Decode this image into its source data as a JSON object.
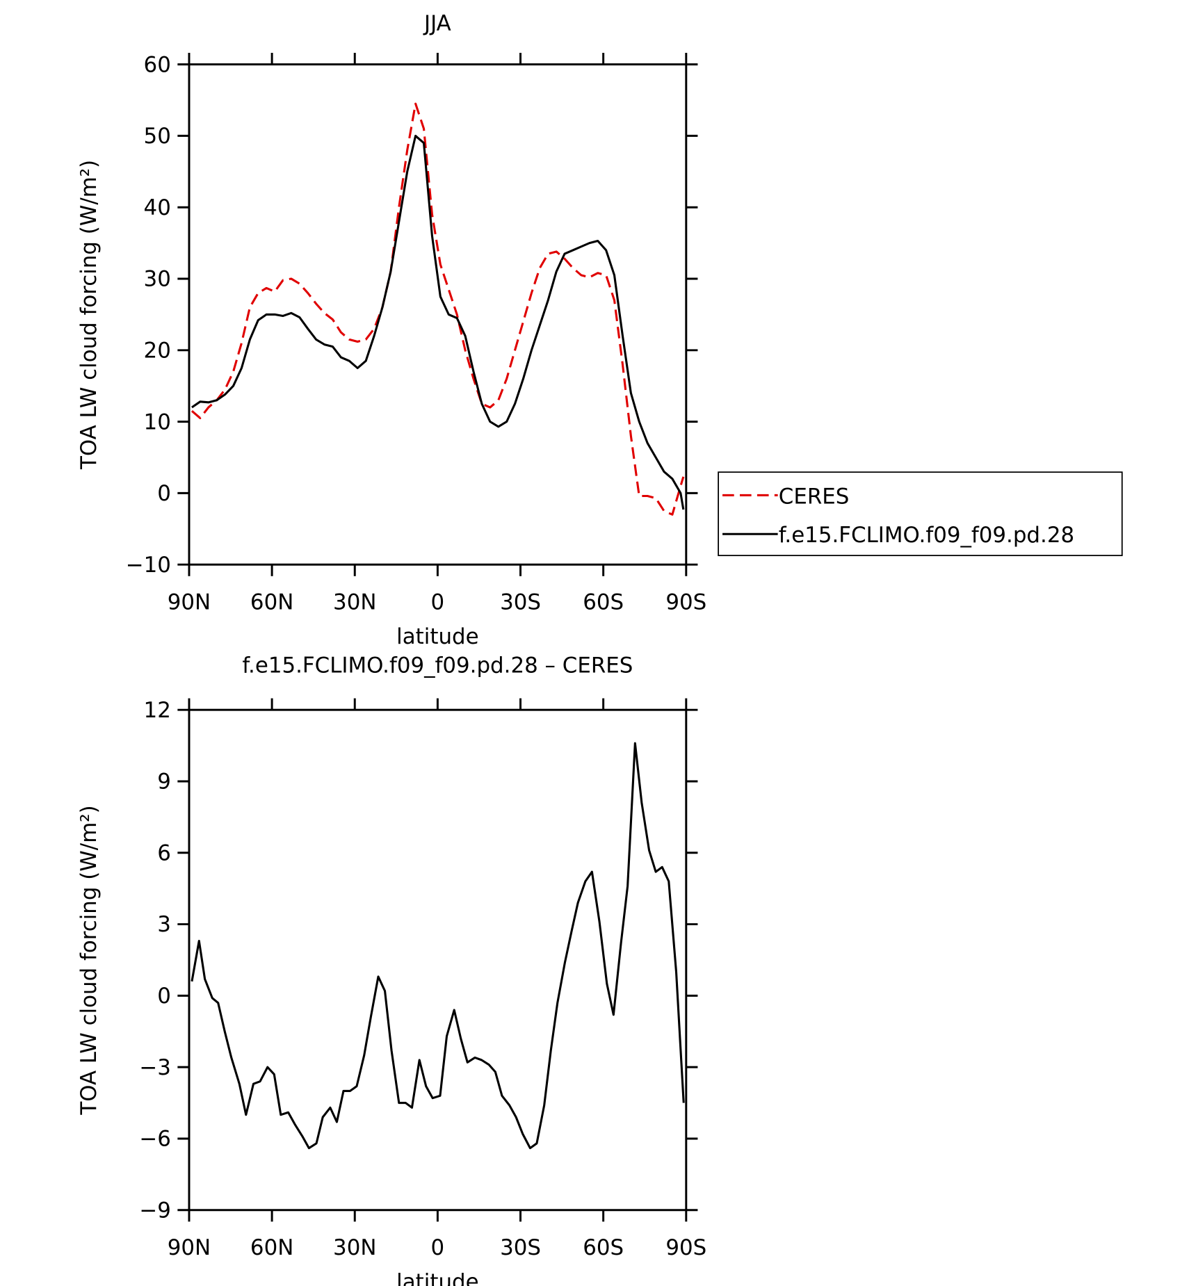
{
  "chart_data": [
    {
      "type": "line",
      "title": "JJA",
      "xlabel": "latitude",
      "ylabel": "TOA LW cloud forcing (W/m²)",
      "xlim": [
        90,
        -90
      ],
      "xticks": [
        {
          "value": 90,
          "label": "90N"
        },
        {
          "value": 60,
          "label": "60N"
        },
        {
          "value": 30,
          "label": "30N"
        },
        0,
        {
          "value": -30,
          "label": "30S"
        },
        {
          "value": -60,
          "label": "60S"
        },
        {
          "value": -90,
          "label": "90S"
        }
      ],
      "ylim": [
        -10,
        60
      ],
      "yticks": [
        {
          "value": -10,
          "label": "−10"
        },
        0,
        10,
        20,
        30,
        40,
        50,
        60
      ],
      "legend": "right",
      "x": [
        89,
        86,
        83,
        80,
        77,
        74,
        71,
        68,
        65,
        62,
        59,
        56,
        53,
        50,
        47,
        44,
        41,
        38,
        35,
        32,
        29,
        26,
        23,
        20,
        17,
        14,
        11,
        8,
        5,
        2,
        -1,
        -4,
        -7,
        -10,
        -13,
        -16,
        -19,
        -22,
        -25,
        -28,
        -31,
        -34,
        -37,
        -40,
        -43,
        -46,
        -49,
        -52,
        -55,
        -58,
        -61,
        -64,
        -67,
        -70,
        -73,
        -76,
        -79,
        -82,
        -85,
        -88,
        -89
      ],
      "series": [
        {
          "name": "CERES",
          "color": "#e00000",
          "style": "dashed",
          "values": [
            11.5,
            10.5,
            12,
            13,
            14.5,
            17,
            21,
            26,
            28,
            28.7,
            28.2,
            29.8,
            30,
            29.3,
            28,
            26.5,
            25.2,
            24.3,
            22.5,
            21.5,
            21.2,
            21.5,
            23,
            26,
            31,
            40,
            48,
            54.5,
            51,
            39,
            32,
            28.5,
            25,
            20,
            16,
            12.5,
            12,
            13,
            16,
            20,
            24,
            28,
            31.5,
            33.5,
            33.8,
            32.8,
            31.5,
            30.5,
            30.2,
            30.8,
            30.5,
            27,
            18,
            8,
            -0.4,
            -0.4,
            -0.7,
            -2.5,
            -3,
            1,
            2.3
          ]
        },
        {
          "name": "f.e15.FCLIMO.f09_f09.pd.28",
          "color": "#000000",
          "style": "solid",
          "values": [
            12,
            12.8,
            12.7,
            13,
            13.8,
            15,
            17.5,
            21.5,
            24.2,
            25,
            25,
            24.8,
            25.2,
            24.6,
            23,
            21.5,
            20.8,
            20.5,
            19,
            18.5,
            17.5,
            18.5,
            22,
            26,
            31,
            38,
            45,
            50,
            49,
            36,
            27.5,
            25,
            24.5,
            22,
            17,
            12.5,
            10,
            9.3,
            10,
            12.5,
            16,
            20,
            23.5,
            27,
            31,
            33.5,
            34,
            34.5,
            35,
            35.3,
            34,
            30.5,
            22,
            14,
            10,
            7,
            5,
            3,
            2,
            0,
            -2.3
          ]
        }
      ]
    },
    {
      "type": "line",
      "title": "f.e15.FCLIMO.f09_f09.pd.28 – CERES",
      "xlabel": "latitude",
      "ylabel": "TOA LW cloud forcing (W/m²)",
      "xlim": [
        90,
        -90
      ],
      "xticks": [
        {
          "value": 90,
          "label": "90N"
        },
        {
          "value": 60,
          "label": "60N"
        },
        {
          "value": 30,
          "label": "30N"
        },
        0,
        {
          "value": -30,
          "label": "30S"
        },
        {
          "value": -60,
          "label": "60S"
        },
        {
          "value": -90,
          "label": "90S"
        }
      ],
      "ylim": [
        -9,
        12
      ],
      "yticks": [
        {
          "value": -9,
          "label": "−9"
        },
        {
          "value": -6,
          "label": "−6"
        },
        {
          "value": -3,
          "label": "−3"
        },
        0,
        3,
        6,
        9,
        12
      ],
      "x": [
        89,
        86.4,
        84.3,
        81.6,
        79.5,
        77.1,
        74.7,
        71.8,
        69.4,
        66.7,
        64.3,
        61.6,
        59.2,
        56.8,
        54.1,
        51.7,
        49,
        46.6,
        43.9,
        41.6,
        38.9,
        36.5,
        34.1,
        31.7,
        29.3,
        26.6,
        24.2,
        21.5,
        19.1,
        16.7,
        14,
        11.6,
        9.3,
        6.6,
        4.2,
        1.8,
        -0.9,
        -3.3,
        -6,
        -8.4,
        -10.8,
        -13.5,
        -15.9,
        -18.6,
        -20.9,
        -23.3,
        -26,
        -28.4,
        -30.8,
        -33.5,
        -35.9,
        -38.6,
        -41,
        -43.4,
        -46.1,
        -48.5,
        -50.8,
        -53.5,
        -55.9,
        -58.6,
        -61.3,
        -63.7,
        -66.4,
        -68.8,
        -71.5,
        -73.9,
        -76.6,
        -79,
        -81.3,
        -83.7,
        -86.4,
        -89.1
      ],
      "series": [
        {
          "color": "#000000",
          "style": "solid",
          "values": [
            0.6,
            2.3,
            0.7,
            -0.1,
            -0.3,
            -1.5,
            -2.6,
            -3.7,
            -5,
            -3.7,
            -3.6,
            -3,
            -3.3,
            -5,
            -4.9,
            -5.4,
            -5.9,
            -6.4,
            -6.2,
            -5.1,
            -4.7,
            -5.3,
            -4,
            -4,
            -3.8,
            -2.5,
            -0.9,
            0.8,
            0.2,
            -2.3,
            -4.5,
            -4.5,
            -4.7,
            -2.7,
            -3.8,
            -4.3,
            -4.2,
            -1.7,
            -0.6,
            -1.8,
            -2.8,
            -2.6,
            -2.7,
            -2.9,
            -3.2,
            -4.2,
            -4.6,
            -5.1,
            -5.8,
            -6.4,
            -6.2,
            -4.6,
            -2.3,
            -0.3,
            1.4,
            2.7,
            3.9,
            4.8,
            5.2,
            3.1,
            0.5,
            -0.8,
            2.2,
            4.6,
            10.6,
            8.1,
            6.1,
            5.2,
            5.4,
            4.8,
            1,
            -4.5
          ]
        }
      ]
    }
  ]
}
